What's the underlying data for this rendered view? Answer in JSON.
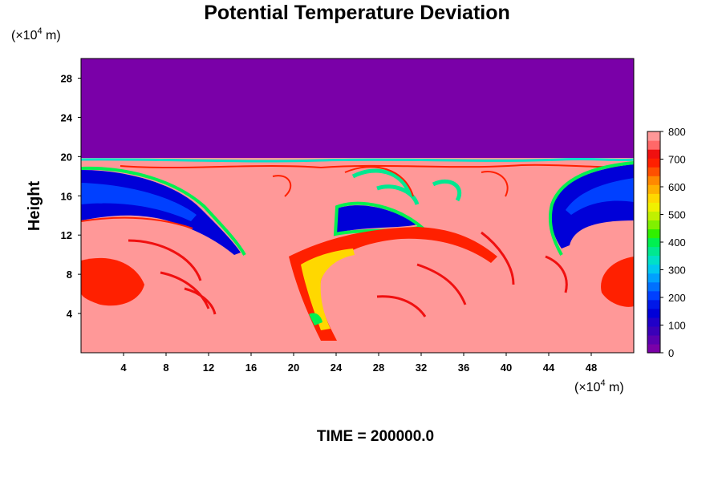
{
  "chart_data": {
    "type": "heatmap",
    "title": "Potential Temperature Deviation",
    "ylabel": "Height",
    "xlabel": "",
    "x_unit": {
      "prefix": "(×10",
      "exp": "4",
      "suffix": " m)"
    },
    "y_unit": {
      "prefix": "(×10",
      "exp": "4",
      "suffix": " m)"
    },
    "x_ticks": [
      4,
      8,
      12,
      16,
      20,
      24,
      28,
      32,
      36,
      40,
      44,
      48
    ],
    "y_ticks": [
      4,
      8,
      12,
      16,
      20,
      24,
      28
    ],
    "xlim": [
      0,
      52
    ],
    "ylim": [
      0,
      30
    ],
    "colorbar": {
      "range": [
        0,
        800
      ],
      "ticks": [
        0,
        100,
        200,
        300,
        400,
        500,
        600,
        700,
        800
      ],
      "levels": [
        "#7a00a8",
        "#5a00b0",
        "#3a00b8",
        "#2000c8",
        "#0000d8",
        "#0018e8",
        "#0040ff",
        "#0070ff",
        "#00a0ff",
        "#00c8f0",
        "#00e0c8",
        "#00e890",
        "#00f050",
        "#30f000",
        "#80f000",
        "#c0f000",
        "#f0f000",
        "#ffd800",
        "#ffb000",
        "#ff8800",
        "#ff5000",
        "#ff2000",
        "#f01010",
        "#ff6868",
        "#ff9898"
      ]
    },
    "field_regions": {
      "background_value": 800,
      "top_layer_value": 0,
      "top_layer_ymin": 20,
      "warm_plume_value": 720,
      "cold_band_value": 150
    },
    "footer": "TIME = 200000.0"
  }
}
